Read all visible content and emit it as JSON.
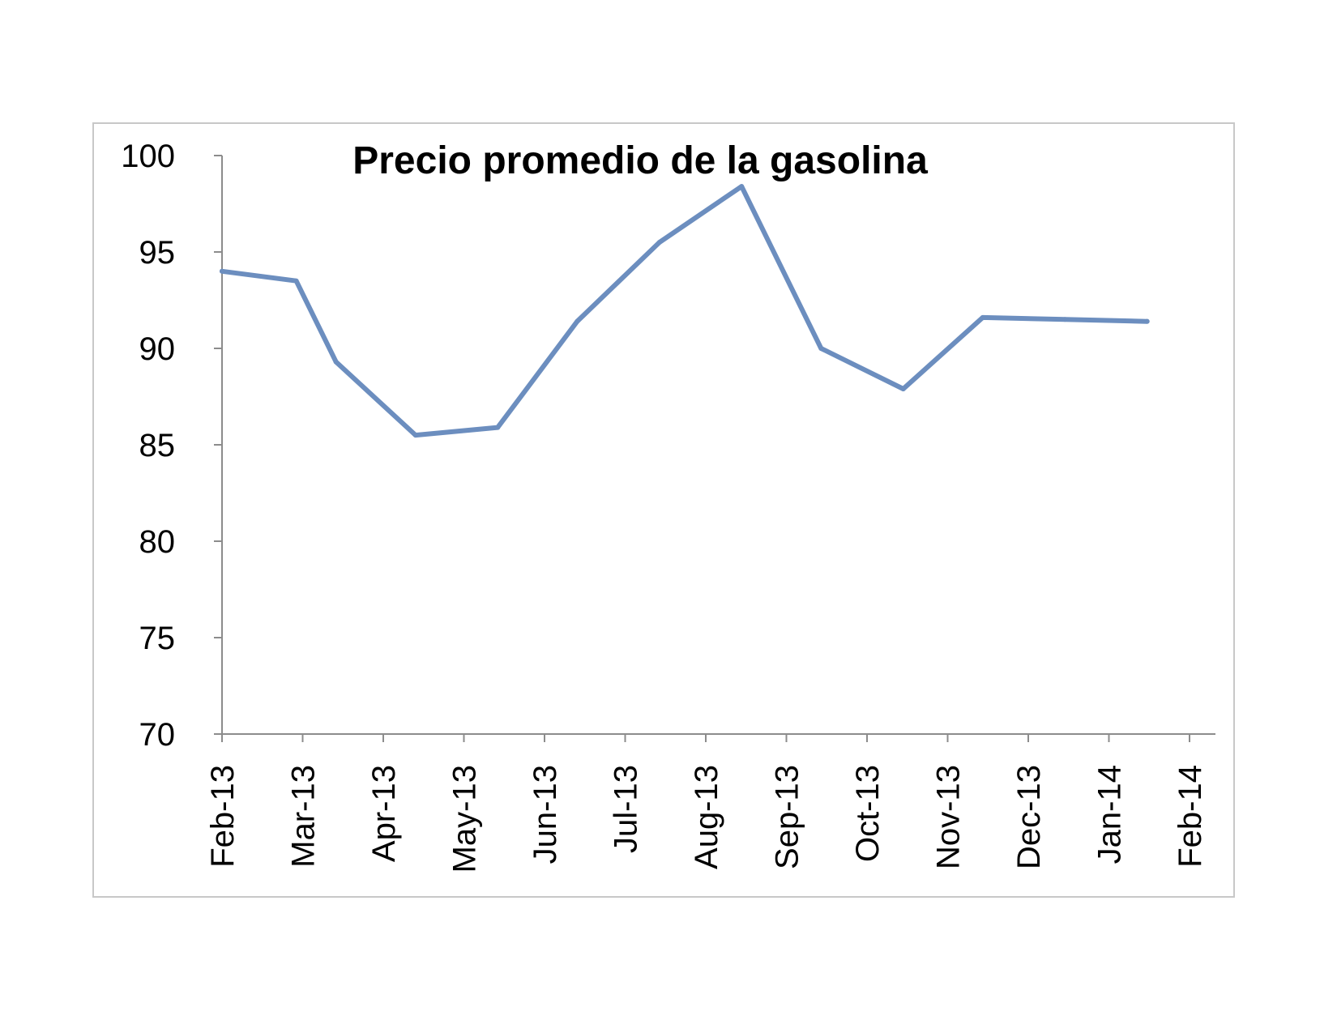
{
  "chart_data": {
    "type": "line",
    "title": "Precio promedio de la gasolina",
    "xlabel": "",
    "ylabel": "",
    "ylim": [
      70,
      100
    ],
    "yticks": [
      70,
      75,
      80,
      85,
      90,
      95,
      100
    ],
    "x_ticks": [
      "Feb-13",
      "Mar-13",
      "Apr-13",
      "May-13",
      "Jun-13",
      "Jul-13",
      "Aug-13",
      "Sep-13",
      "Oct-13",
      "Nov-13",
      "Dec-13",
      "Jan-14",
      "Feb-14"
    ],
    "x_range": [
      "2013-02-01",
      "2014-02-01"
    ],
    "x": [
      "2013-02-01",
      "2013-03-01",
      "2013-03-16",
      "2013-04-15",
      "2013-05-16",
      "2013-06-15",
      "2013-07-16",
      "2013-08-16",
      "2013-09-15",
      "2013-10-16",
      "2013-11-15",
      "2013-12-16",
      "2014-01-16"
    ],
    "series": [
      {
        "values": [
          94.0,
          93.5,
          89.3,
          85.5,
          85.9,
          91.4,
          95.5,
          98.4,
          90.0,
          87.9,
          91.6,
          91.5,
          91.4
        ],
        "color": "#6c8ebf"
      }
    ],
    "grid": false,
    "legend": "none"
  }
}
